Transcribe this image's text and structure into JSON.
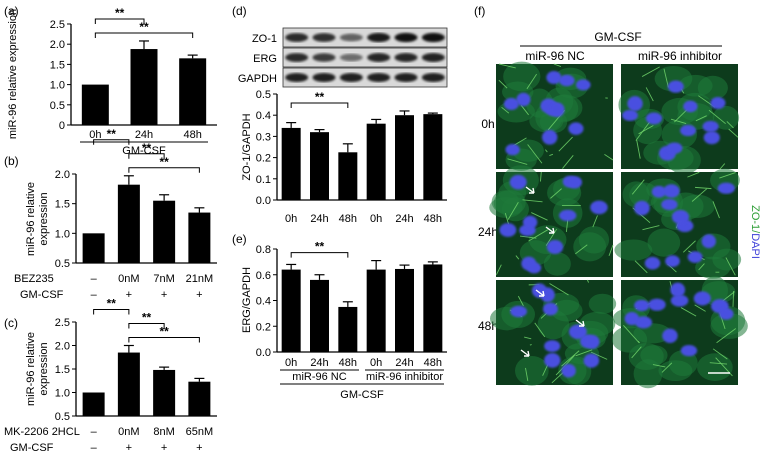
{
  "chart_data": [
    {
      "panel": "(a)",
      "type": "bar",
      "ylabel": "miR-96 relative expression",
      "categories": [
        "0h",
        "24h",
        "48h"
      ],
      "values": [
        1.0,
        1.88,
        1.65
      ],
      "errors": [
        0,
        0.2,
        0.08
      ],
      "ylim": [
        0,
        2.5
      ],
      "yticks": [
        "0",
        "0.5",
        "1.0",
        "1.5",
        "2.0",
        "2.5"
      ],
      "group_label": "GM-CSF",
      "significance": [
        {
          "from": 0,
          "to": 1,
          "label": "**"
        },
        {
          "from": 0,
          "to": 2,
          "label": "**"
        }
      ]
    },
    {
      "panel": "(b)",
      "type": "bar",
      "ylabel": [
        "miR-96 relative",
        "expression"
      ],
      "categories": [
        "–",
        "0nM",
        "7nM",
        "21nM"
      ],
      "values": [
        1.0,
        1.82,
        1.55,
        1.35
      ],
      "errors": [
        0,
        0.15,
        0.1,
        0.08
      ],
      "ylim": [
        0.5,
        2.0
      ],
      "yticks": [
        "0.5",
        "1.0",
        "1.5",
        "2.0"
      ],
      "row2_name": "BEZ235",
      "row3_name": "GM-CSF",
      "row3": [
        "–",
        "+",
        "+",
        "+"
      ],
      "significance": [
        {
          "from": 0,
          "to": 1,
          "label": "**"
        },
        {
          "from": 1,
          "to": 2,
          "label": "**"
        },
        {
          "from": 1,
          "to": 3,
          "label": "**"
        }
      ]
    },
    {
      "panel": "(c)",
      "type": "bar",
      "ylabel": [
        "miR-96 relative",
        "expression"
      ],
      "categories": [
        "–",
        "0nM",
        "8nM",
        "65nM"
      ],
      "values": [
        1.0,
        1.85,
        1.48,
        1.23
      ],
      "errors": [
        0,
        0.15,
        0.06,
        0.07
      ],
      "ylim": [
        0.5,
        2.5
      ],
      "yticks": [
        "0.5",
        "1.0",
        "1.5",
        "2.0",
        "2.5"
      ],
      "row2_name": "MK-2206 2HCL",
      "row3_name": "GM-CSF",
      "row3": [
        "–",
        "+",
        "+",
        "+"
      ],
      "significance": [
        {
          "from": 0,
          "to": 1,
          "label": "**"
        },
        {
          "from": 1,
          "to": 2,
          "label": "**"
        },
        {
          "from": 1,
          "to": 3,
          "label": "**"
        }
      ]
    },
    {
      "panel": "(d)",
      "type": "bar",
      "ylabel": "ZO-1/GAPDH",
      "categories": [
        "0h",
        "24h",
        "48h",
        "0h",
        "24h",
        "48h"
      ],
      "values": [
        0.34,
        0.32,
        0.225,
        0.36,
        0.4,
        0.405
      ],
      "errors": [
        0.025,
        0.012,
        0.04,
        0.02,
        0.02,
        0.005
      ],
      "ylim": [
        0,
        0.5
      ],
      "yticks": [
        "0.0",
        "0.1",
        "0.2",
        "0.3",
        "0.4",
        "0.5"
      ],
      "significance": [
        {
          "from": 0,
          "to": 2,
          "label": "**"
        }
      ]
    },
    {
      "panel": "(e)",
      "type": "bar",
      "ylabel": "ERG/GAPDH",
      "categories": [
        "0h",
        "24h",
        "48h",
        "0h",
        "24h",
        "48h"
      ],
      "values": [
        0.64,
        0.56,
        0.35,
        0.64,
        0.645,
        0.68
      ],
      "errors": [
        0.04,
        0.04,
        0.04,
        0.07,
        0.03,
        0.02
      ],
      "ylim": [
        0,
        0.8
      ],
      "yticks": [
        "0.0",
        "0.2",
        "0.4",
        "0.6",
        "0.8"
      ],
      "groups": [
        "miR-96 NC",
        "miR-96 inhibitor"
      ],
      "group_label": "GM-CSF",
      "significance": [
        {
          "from": 0,
          "to": 2,
          "label": "**"
        }
      ]
    }
  ],
  "blot": {
    "rows": [
      {
        "label": "ZO-1",
        "intensity": [
          0.8,
          0.78,
          0.55,
          0.88,
          0.92,
          0.92
        ]
      },
      {
        "label": "ERG",
        "intensity": [
          0.8,
          0.72,
          0.5,
          0.82,
          0.82,
          0.84
        ]
      },
      {
        "label": "GAPDH",
        "intensity": [
          0.85,
          0.85,
          0.85,
          0.85,
          0.85,
          0.85
        ]
      }
    ]
  },
  "panel_f": {
    "label": "(f)",
    "treatment": "GM-CSF",
    "columns": [
      "miR-96 NC",
      "miR-96 inhibitor"
    ],
    "rows": [
      "0h",
      "24h",
      "48h"
    ],
    "stain_label": "ZO-1",
    "stain_sep": "/",
    "nuclear_label": "DAPI",
    "colors": {
      "membrane": "#2e9e36",
      "nuclei": "#3d3fd8",
      "arrows": "#ffffff"
    }
  }
}
